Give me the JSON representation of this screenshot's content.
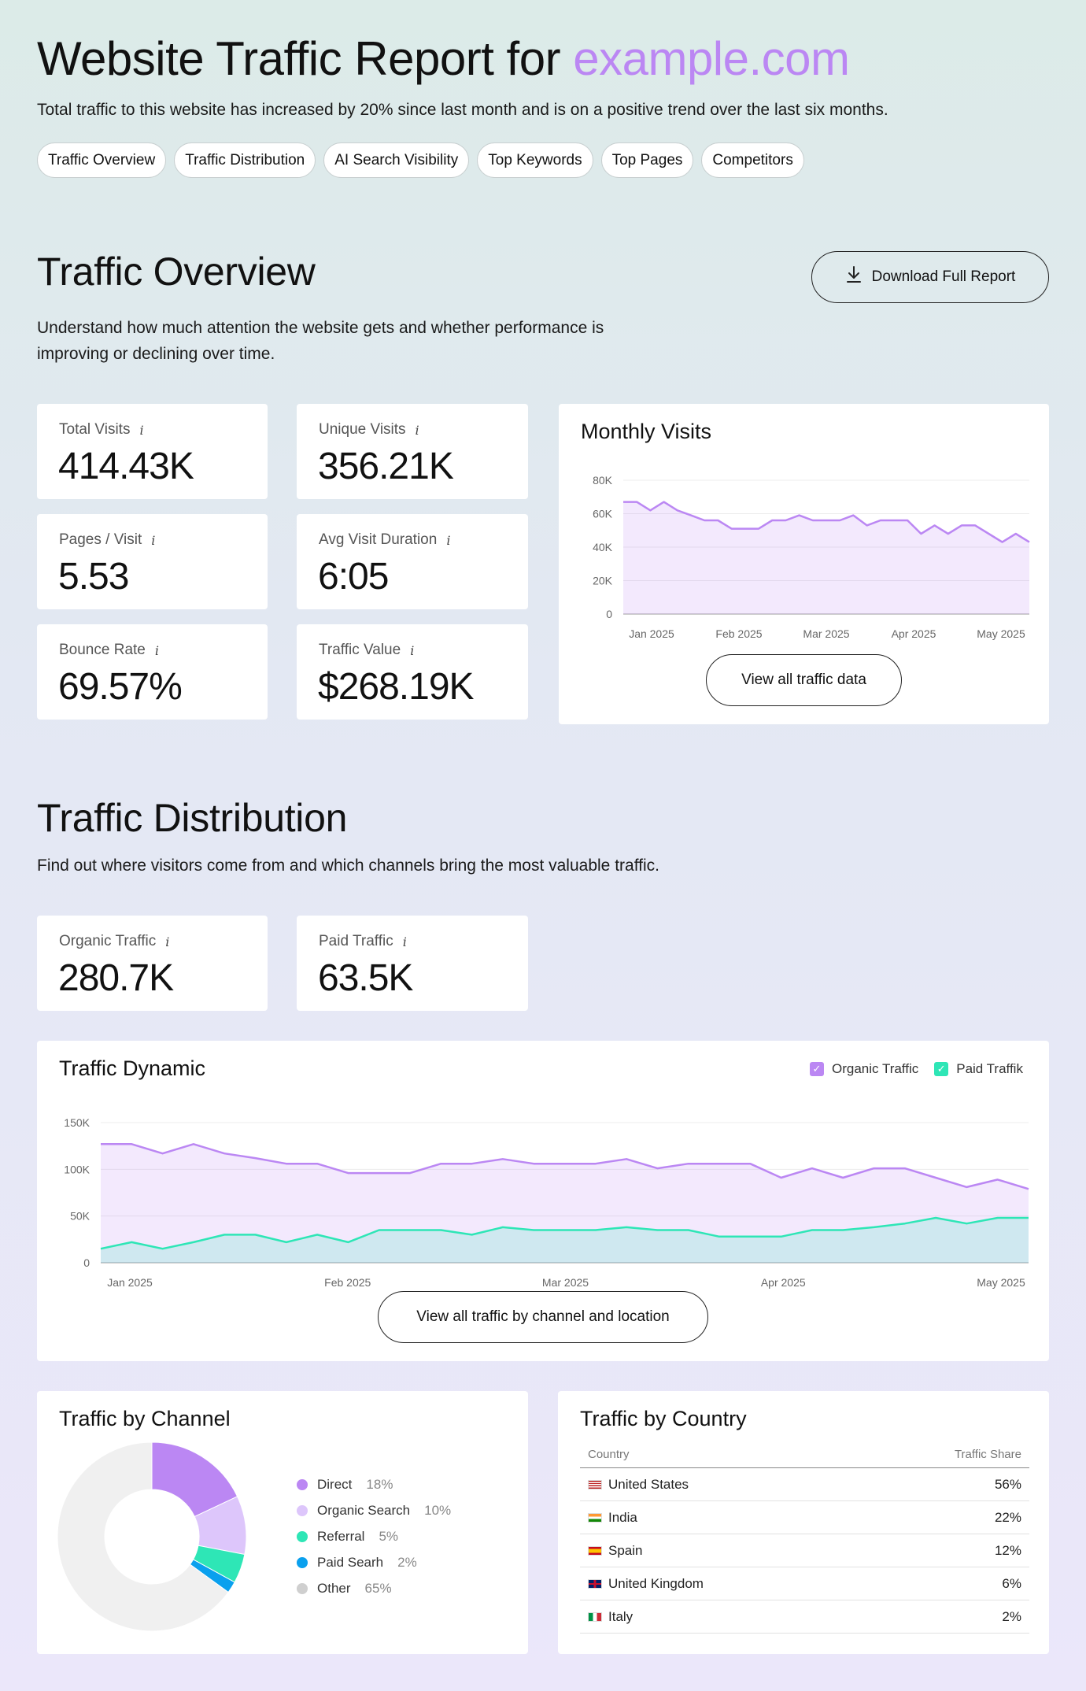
{
  "header": {
    "title_main": "Website Traffic Report for ",
    "title_domain": "example.com",
    "lead": "Total traffic to this website has increased by 20% since last month and is on a positive trend over the last six months.",
    "accent_color": "#bb87f3"
  },
  "nav_pills": [
    "Traffic Overview",
    "Traffic Distribution",
    "AI Search Visibility",
    "Top Keywords",
    "Top Pages",
    "Competitors"
  ],
  "overview": {
    "title": "Traffic Overview",
    "subtitle_line1": "Understand how much attention the website gets and whether performance is",
    "subtitle_line2": "improving or declining over time.",
    "download_label": "Download Full Report",
    "stats": [
      {
        "label": "Total Visits",
        "value": "414.43K"
      },
      {
        "label": "Unique Visits",
        "value": "356.21K"
      },
      {
        "label": "Pages / Visit",
        "value": "5.53"
      },
      {
        "label": "Avg Visit Duration",
        "value": "6:05"
      },
      {
        "label": "Bounce Rate",
        "value": "69.57%"
      },
      {
        "label": "Traffic Value",
        "value": "$268.19K"
      }
    ],
    "info_glyph": "i",
    "view_all_label": "View all traffic data"
  },
  "distribution": {
    "title": "Traffic Distribution",
    "subtitle": "Find out where visitors come from and which channels bring the most valuable traffic.",
    "stats": [
      {
        "label": "Organic Traffic",
        "value": "280.7K"
      },
      {
        "label": "Paid Traffic",
        "value": "63.5K"
      }
    ],
    "view_all_label": "View all traffic by channel and location"
  },
  "chart_data": [
    {
      "type": "area",
      "title": "Monthly Visits",
      "x_tick_labels": [
        "Jan 2025",
        "Feb 2025",
        "Mar 2025",
        "Apr 2025",
        "May 2025"
      ],
      "y_tick_labels": [
        "80K",
        "60K",
        "40K",
        "20K",
        "0"
      ],
      "ylim": [
        0,
        80000
      ],
      "series": [
        {
          "color": "#bb87f3",
          "values": [
            67000,
            67000,
            62000,
            67000,
            62000,
            59000,
            56000,
            56000,
            51000,
            51000,
            51000,
            56000,
            56000,
            59000,
            56000,
            56000,
            56000,
            59000,
            53000,
            56000,
            56000,
            56000,
            48000,
            53000,
            48000,
            53000,
            53000,
            48000,
            43000,
            48000,
            43000
          ]
        }
      ]
    },
    {
      "type": "area",
      "title": "Traffic Dynamic",
      "x_tick_labels": [
        "Jan 2025",
        "Feb 2025",
        "Mar 2025",
        "Apr 2025",
        "May 2025"
      ],
      "y_tick_labels": [
        "150K",
        "100K",
        "50K",
        "0"
      ],
      "ylim": [
        0,
        150000
      ],
      "legend_position": "top-right",
      "series": [
        {
          "name": "Organic Traffic",
          "color": "#bb87f3",
          "values": [
            127000,
            127000,
            117000,
            127000,
            117000,
            112000,
            106000,
            106000,
            96000,
            96000,
            96000,
            106000,
            106000,
            111000,
            106000,
            106000,
            106000,
            111000,
            101000,
            106000,
            106000,
            106000,
            91000,
            101000,
            91000,
            101000,
            101000,
            91000,
            81000,
            89000,
            79000
          ]
        },
        {
          "name": "Paid Traffik",
          "color": "#2ee6b6",
          "values": [
            15000,
            22000,
            15000,
            22000,
            30000,
            30000,
            22000,
            30000,
            22000,
            35000,
            35000,
            35000,
            30000,
            38000,
            35000,
            35000,
            35000,
            38000,
            35000,
            35000,
            28000,
            28000,
            28000,
            35000,
            35000,
            38000,
            42000,
            48000,
            42000,
            48000,
            48000
          ]
        }
      ]
    },
    {
      "type": "pie",
      "title": "Traffic by Channel",
      "categories": [
        "Direct",
        "Organic Search",
        "Referral",
        "Paid Searh",
        "Other"
      ],
      "values": [
        18,
        10,
        5,
        2,
        65
      ],
      "value_labels": [
        "18%",
        "10%",
        "5%",
        "2%",
        "65%"
      ],
      "colors": [
        "#bb87f3",
        "#ddc6fb",
        "#2ee6b6",
        "#0aa0ee",
        "#f0f0f0"
      ],
      "legend_colors": [
        "#bb87f3",
        "#ddc6fb",
        "#2ee6b6",
        "#0aa0ee",
        "#cfcfcf"
      ]
    },
    {
      "type": "table",
      "title": "Traffic by Country",
      "columns": [
        "Country",
        "Traffic Share"
      ],
      "rows": [
        {
          "country": "United States",
          "share": "56%"
        },
        {
          "country": "India",
          "share": "22%"
        },
        {
          "country": "Spain",
          "share": "12%"
        },
        {
          "country": "United Kingdom",
          "share": "6%"
        },
        {
          "country": "Italy",
          "share": "2%"
        }
      ]
    }
  ]
}
